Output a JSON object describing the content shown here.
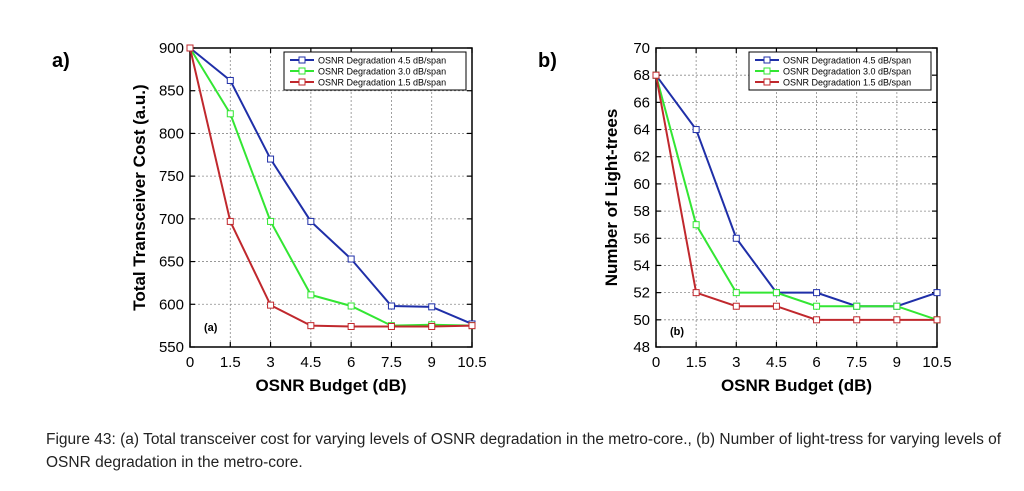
{
  "panel_a_label": "a)",
  "panel_b_label": "b)",
  "caption": "Figure 43: (a) Total transceiver cost for varying levels of OSNR degradation in the metro-core., (b) Number of light-tress for varying levels of OSNR degradation in the metro-core.",
  "chart_data": [
    {
      "type": "line",
      "inner_label": "(a)",
      "xlabel": "OSNR Budget (dB)",
      "ylabel": "Total Transceiver Cost (a.u.)",
      "x": [
        0,
        1.5,
        3,
        4.5,
        6,
        7.5,
        9,
        10.5
      ],
      "xticks": [
        "0",
        "1.5",
        "3",
        "4.5",
        "6",
        "7.5",
        "9",
        "10.5"
      ],
      "yticks": [
        "550",
        "600",
        "650",
        "700",
        "750",
        "800",
        "850",
        "900"
      ],
      "xlim": [
        0,
        10.5
      ],
      "ylim": [
        550,
        900
      ],
      "grid": true,
      "legend_position": "top-right",
      "series": [
        {
          "name": "OSNR Degradation 4.5 dB/span",
          "color": "#1f2fa8",
          "values": [
            900,
            862,
            770,
            697,
            653,
            598,
            597,
            577
          ]
        },
        {
          "name": "OSNR Degradation 3.0 dB/span",
          "color": "#33e633",
          "values": [
            900,
            823,
            697,
            611,
            598,
            575,
            576,
            575
          ]
        },
        {
          "name": "OSNR Degradation 1.5 dB/span",
          "color": "#c0282d",
          "values": [
            900,
            697,
            599,
            575,
            574,
            574,
            574,
            575
          ]
        }
      ]
    },
    {
      "type": "line",
      "inner_label": "(b)",
      "xlabel": "OSNR Budget (dB)",
      "ylabel": "Number of Light-trees",
      "x": [
        0,
        1.5,
        3,
        4.5,
        6,
        7.5,
        9,
        10.5
      ],
      "xticks": [
        "0",
        "1.5",
        "3",
        "4.5",
        "6",
        "7.5",
        "9",
        "10.5"
      ],
      "yticks": [
        "48",
        "50",
        "52",
        "54",
        "56",
        "58",
        "60",
        "62",
        "64",
        "66",
        "68",
        "70"
      ],
      "xlim": [
        0,
        10.5
      ],
      "ylim": [
        48,
        70
      ],
      "grid": true,
      "legend_position": "top-right",
      "series": [
        {
          "name": "OSNR Degradation 4.5 dB/span",
          "color": "#1f2fa8",
          "values": [
            68,
            64,
            56,
            52,
            52,
            51,
            51,
            52
          ]
        },
        {
          "name": "OSNR Degradation 3.0 dB/span",
          "color": "#33e633",
          "values": [
            68,
            57,
            52,
            52,
            51,
            51,
            51,
            50
          ]
        },
        {
          "name": "OSNR Degradation 1.5 dB/span",
          "color": "#c0282d",
          "values": [
            68,
            52,
            51,
            51,
            50,
            50,
            50,
            50
          ]
        }
      ]
    }
  ]
}
